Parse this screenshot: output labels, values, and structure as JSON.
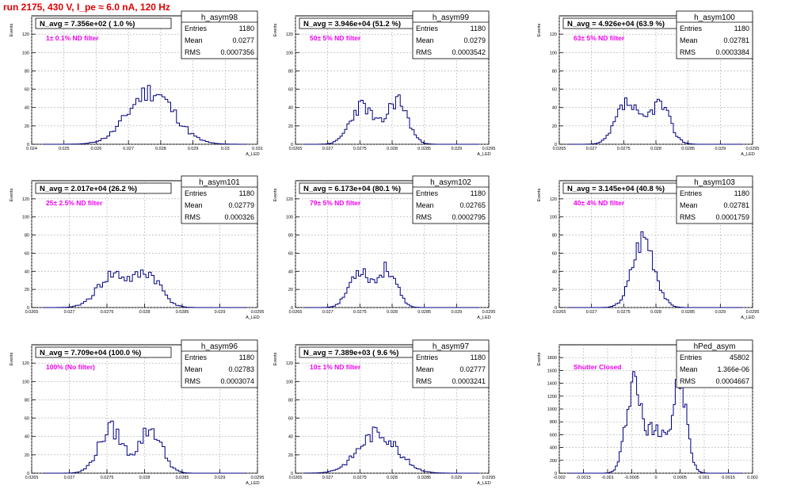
{
  "page_title": "run 2175,   430 V, I_pe ≈ 6.0 nA, 120 Hz",
  "colors": {
    "hist": "#000080",
    "annotation": "#ee00ee",
    "grid": "#aaaaaa"
  },
  "stat_labels": {
    "entries": "Entries",
    "mean": "Mean",
    "rms": "RMS"
  },
  "chart_data": [
    {
      "type": "histogram",
      "title": "h_asym98",
      "navg": "N_avg = 7.356e+02 ( 1.0 %)",
      "annotation": "1± 0.1% ND filter",
      "ylabel": "Events",
      "xlabel": "A_LED",
      "entries": "1180",
      "mean": "0.0277",
      "rms": "0.0007356",
      "xlim": [
        0.024,
        0.031
      ],
      "ylim": [
        0,
        140
      ],
      "xticks": [
        "0.024",
        "0.025",
        "0.026",
        "0.027",
        "0.028",
        "0.029",
        "0.03",
        "0.031"
      ],
      "yticks": [
        "0",
        "20",
        "40",
        "60",
        "80",
        "100",
        "120"
      ],
      "peaks": [
        {
          "c": 0.0277,
          "s": 0.0007,
          "a": 58
        }
      ],
      "nbins": 70,
      "seed": 11
    },
    {
      "type": "histogram",
      "title": "h_asym99",
      "navg": "N_avg = 3.946e+04 (51.2 %)",
      "annotation": "50± 5% ND filter",
      "ylabel": "Events",
      "xlabel": "A_LED",
      "entries": "1180",
      "mean": "0.0279",
      "rms": "0.0003542",
      "xlim": [
        0.0265,
        0.0295
      ],
      "ylim": [
        0,
        140
      ],
      "xticks": [
        "0.0265",
        "0.027",
        "0.0275",
        "0.028",
        "0.0285",
        "0.029",
        "0.0295"
      ],
      "yticks": [
        "0",
        "20",
        "40",
        "60",
        "80",
        "100",
        "120"
      ],
      "peaks": [
        {
          "c": 0.02753,
          "s": 0.00018,
          "a": 42
        },
        {
          "c": 0.02808,
          "s": 0.00016,
          "a": 48
        }
      ],
      "nbins": 75,
      "seed": 23
    },
    {
      "type": "histogram",
      "title": "h_asym100",
      "navg": "N_avg = 4.926e+04 (63.9 %)",
      "annotation": "63± 5% ND filter",
      "ylabel": "Events",
      "xlabel": "A_LED",
      "entries": "1180",
      "mean": "0.02781",
      "rms": "0.0003384",
      "xlim": [
        0.0265,
        0.0295
      ],
      "ylim": [
        0,
        140
      ],
      "xticks": [
        "0.0265",
        "0.027",
        "0.0275",
        "0.028",
        "0.0285",
        "0.029",
        "0.0295"
      ],
      "yticks": [
        "0",
        "20",
        "40",
        "60",
        "80",
        "100",
        "120"
      ],
      "peaks": [
        {
          "c": 0.02755,
          "s": 0.00017,
          "a": 44
        },
        {
          "c": 0.02805,
          "s": 0.00016,
          "a": 44
        }
      ],
      "nbins": 75,
      "seed": 37
    },
    {
      "type": "histogram",
      "title": "h_asym101",
      "navg": "N_avg = 2.017e+04 (26.2 %)",
      "annotation": "25± 2.5% ND filter",
      "ylabel": "Events",
      "xlabel": "A_LED",
      "entries": "1180",
      "mean": "0.02779",
      "rms": "0.000326",
      "xlim": [
        0.0265,
        0.0295
      ],
      "ylim": [
        0,
        140
      ],
      "xticks": [
        "0.0265",
        "0.027",
        "0.0275",
        "0.028",
        "0.0285",
        "0.029",
        "0.0295"
      ],
      "yticks": [
        "0",
        "20",
        "40",
        "60",
        "80",
        "100",
        "120"
      ],
      "peaks": [
        {
          "c": 0.02758,
          "s": 0.0002,
          "a": 36
        },
        {
          "c": 0.02805,
          "s": 0.00017,
          "a": 36
        }
      ],
      "nbins": 75,
      "seed": 41
    },
    {
      "type": "histogram",
      "title": "h_asym102",
      "navg": "N_avg = 6.173e+04 (80.1 %)",
      "annotation": "79± 5% ND filter",
      "ylabel": "Events",
      "xlabel": "A_LED",
      "entries": "1180",
      "mean": "0.02765",
      "rms": "0.0002795",
      "xlim": [
        0.0265,
        0.0295
      ],
      "ylim": [
        0,
        140
      ],
      "xticks": [
        "0.0265",
        "0.027",
        "0.0275",
        "0.028",
        "0.0285",
        "0.029",
        "0.0295"
      ],
      "yticks": [
        "0",
        "20",
        "40",
        "60",
        "80",
        "100",
        "120"
      ],
      "peaks": [
        {
          "c": 0.0275,
          "s": 0.00016,
          "a": 42
        },
        {
          "c": 0.02793,
          "s": 0.00014,
          "a": 42
        }
      ],
      "nbins": 75,
      "seed": 53
    },
    {
      "type": "histogram",
      "title": "h_asym103",
      "navg": "N_avg = 3.145e+04 (40.8 %)",
      "annotation": "40± 4% ND filter",
      "ylabel": "Events",
      "xlabel": "A_LED",
      "entries": "1180",
      "mean": "0.02781",
      "rms": "0.0001759",
      "xlim": [
        0.0265,
        0.0295
      ],
      "ylim": [
        0,
        140
      ],
      "xticks": [
        "0.0265",
        "0.027",
        "0.0275",
        "0.028",
        "0.0285",
        "0.029",
        "0.0295"
      ],
      "yticks": [
        "0",
        "20",
        "40",
        "60",
        "80",
        "100",
        "120"
      ],
      "peaks": [
        {
          "c": 0.02781,
          "s": 0.00017,
          "a": 78
        }
      ],
      "nbins": 75,
      "seed": 67
    },
    {
      "type": "histogram",
      "title": "h_asym96",
      "navg": "N_avg = 7.709e+04 (100.0 %)",
      "annotation": "100% (No filter)",
      "ylabel": "Events",
      "xlabel": "A_LED",
      "entries": "1180",
      "mean": "0.02783",
      "rms": "0.0003074",
      "xlim": [
        0.0265,
        0.0295
      ],
      "ylim": [
        0,
        140
      ],
      "xticks": [
        "0.0265",
        "0.027",
        "0.0275",
        "0.028",
        "0.0285",
        "0.029",
        "0.0295"
      ],
      "yticks": [
        "0",
        "20",
        "40",
        "60",
        "80",
        "100",
        "120"
      ],
      "peaks": [
        {
          "c": 0.02755,
          "s": 0.00016,
          "a": 48
        },
        {
          "c": 0.02808,
          "s": 0.00015,
          "a": 48
        }
      ],
      "nbins": 75,
      "seed": 79
    },
    {
      "type": "histogram",
      "title": "h_asym97",
      "navg": "N_avg = 7.389e+03 ( 9.6 %)",
      "annotation": "10± 1% ND filter",
      "ylabel": "Events",
      "xlabel": "A_LED",
      "entries": "1180",
      "mean": "0.02777",
      "rms": "0.0003241",
      "xlim": [
        0.0265,
        0.0295
      ],
      "ylim": [
        0,
        140
      ],
      "xticks": [
        "0.0265",
        "0.027",
        "0.0275",
        "0.028",
        "0.0285",
        "0.029",
        "0.0295"
      ],
      "yticks": [
        "0",
        "20",
        "40",
        "60",
        "80",
        "100",
        "120"
      ],
      "peaks": [
        {
          "c": 0.02778,
          "s": 0.0003,
          "a": 44
        }
      ],
      "nbins": 75,
      "seed": 83
    },
    {
      "type": "histogram",
      "title": "hPed_asym",
      "navg": "",
      "annotation": "Shutter Closed",
      "ylabel": "Events",
      "xlabel": "",
      "entries": "45802",
      "mean": "1.366e-06",
      "rms": "0.0004667",
      "xlim": [
        -0.002,
        0.002
      ],
      "ylim": [
        0,
        2000
      ],
      "xticks": [
        "-0.002",
        "-0.0015",
        "-0.001",
        "-0.0005",
        "0",
        "0.0005",
        "0.001",
        "0.0015",
        "0.002"
      ],
      "yticks": [
        "0",
        "200",
        "400",
        "600",
        "800",
        "1000",
        "1200",
        "1400",
        "1600",
        "1800"
      ],
      "peaks": [
        {
          "c": -0.00045,
          "s": 0.00016,
          "a": 1500
        },
        {
          "c": 0.00048,
          "s": 0.00015,
          "a": 1450
        }
      ],
      "base": 560,
      "nbins": 90,
      "seed": 97
    }
  ]
}
